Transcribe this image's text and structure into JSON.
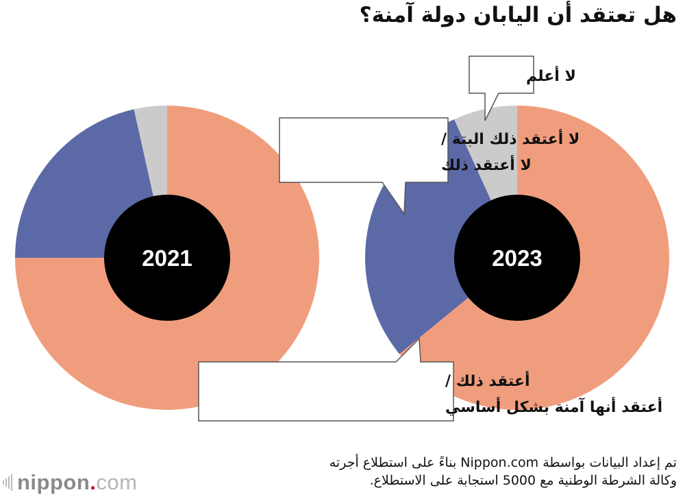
{
  "title": "هل تعتقد أن اليابان دولة آمنة؟",
  "colors": {
    "safe": "#f09d7e",
    "not_safe": "#5b6aa6",
    "dont_know": "#cbcbcb",
    "center": "#000000"
  },
  "chart_data": {
    "type": "pie",
    "title": "هل تعتقد أن اليابان دولة آمنة؟",
    "categories": [
      "أعتقد ذلك / أعتقد أنها آمنة بشكل أساسي",
      "لا أعتقد ذلك البتة / لا أعتقد ذلك",
      "لا أعلم"
    ],
    "series": [
      {
        "name": "2021",
        "values": [
          75.0,
          21.5,
          3.5
        ]
      },
      {
        "name": "2023",
        "values": [
          64.1,
          29.1,
          6.8
        ]
      }
    ],
    "legend": "callouts"
  },
  "callouts": {
    "dont_know": [
      "لا أعلم"
    ],
    "not_safe": [
      "لا أعتقد ذلك البتة /",
      "لا أعتقد ذلك"
    ],
    "safe": [
      "أعتقد ذلك /",
      "أعتقد أنها آمنة بشكل أساسي"
    ]
  },
  "source": {
    "line1": "تم إعداد البيانات بواسطة Nippon.com بناءً على استطلاع أجرته",
    "line2": "وكالة الشرطة الوطنية مع 5000 استجابة على الاستطلاع."
  },
  "logo": {
    "word": "nippon",
    "dot": ".",
    "tld": "com"
  }
}
